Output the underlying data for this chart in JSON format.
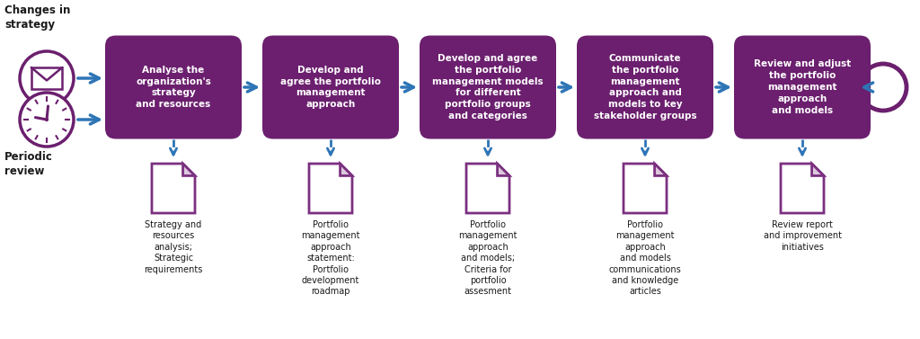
{
  "bg_color": "#ffffff",
  "purple_dark": "#6b1f6e",
  "blue_arrow": "#2e75b6",
  "text_white": "#ffffff",
  "text_black": "#1a1a1a",
  "doc_outline": "#7b3080",
  "input_labels": [
    "Changes in\nstrategy",
    "Periodic\nreview"
  ],
  "boxes": [
    "Analyse the\norganization's\nstrategy\nand resources",
    "Develop and\nagree the portfolio\nmanagement\napproach",
    "Develop and agree\nthe portfolio\nmanagement models\nfor different\nportfolio groups\nand categories",
    "Communicate\nthe portfolio\nmanagement\napproach and\nmodels to key\nstakeholder groups",
    "Review and adjust\nthe portfolio\nmanagement\napproach\nand models"
  ],
  "doc_labels": [
    "Strategy and\nresources\nanalysis;\nStrategic\nrequirements",
    "Portfolio\nmanagement\napproach\nstatement:\nPortfolio\ndevelopment\nroadmap",
    "Portfolio\nmanagement\napproach\nand models;\nCriteria for\nportfolio\nassesment",
    "Portfolio\nmanagement\napproach\nand models\ncommunications\nand knowledge\narticles",
    "Review report\nand improvement\ninitiatives"
  ]
}
